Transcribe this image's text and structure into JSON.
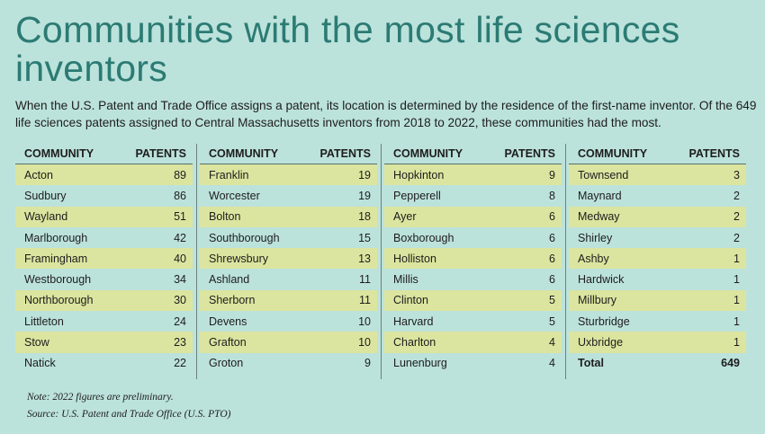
{
  "title": "Communities with the most life sciences inventors",
  "intro": "When the U.S. Patent and Trade Office assigns a patent, its location is determined by the residence of the first-name inventor. Of the 649 life sciences patents assigned to Central Massachusetts inventors from 2018 to 2022, these communities had the most.",
  "colors": {
    "background": "#bce2dc",
    "stripe": "#dce59f",
    "title": "#2b7b73"
  },
  "chart_data": {
    "type": "table",
    "title": "Communities with the most life sciences inventors",
    "columns": [
      "COMMUNITY",
      "PATENTS"
    ],
    "groups": [
      [
        [
          "Acton",
          89
        ],
        [
          "Sudbury",
          86
        ],
        [
          "Wayland",
          51
        ],
        [
          "Marlborough",
          42
        ],
        [
          "Framingham",
          40
        ],
        [
          "Westborough",
          34
        ],
        [
          "Northborough",
          30
        ],
        [
          "Littleton",
          24
        ],
        [
          "Stow",
          23
        ],
        [
          "Natick",
          22
        ]
      ],
      [
        [
          "Franklin",
          19
        ],
        [
          "Worcester",
          19
        ],
        [
          "Bolton",
          18
        ],
        [
          "Southborough",
          15
        ],
        [
          "Shrewsbury",
          13
        ],
        [
          "Ashland",
          11
        ],
        [
          "Sherborn",
          11
        ],
        [
          "Devens",
          10
        ],
        [
          "Grafton",
          10
        ],
        [
          "Groton",
          9
        ]
      ],
      [
        [
          "Hopkinton",
          9
        ],
        [
          "Pepperell",
          8
        ],
        [
          "Ayer",
          6
        ],
        [
          "Boxborough",
          6
        ],
        [
          "Holliston",
          6
        ],
        [
          "Millis",
          6
        ],
        [
          "Clinton",
          5
        ],
        [
          "Harvard",
          5
        ],
        [
          "Charlton",
          4
        ],
        [
          "Lunenburg",
          4
        ]
      ],
      [
        [
          "Townsend",
          3
        ],
        [
          "Maynard",
          2
        ],
        [
          "Medway",
          2
        ],
        [
          "Shirley",
          2
        ],
        [
          "Ashby",
          1
        ],
        [
          "Hardwick",
          1
        ],
        [
          "Millbury",
          1
        ],
        [
          "Sturbridge",
          1
        ],
        [
          "Uxbridge",
          1
        ],
        [
          "Total",
          649
        ]
      ]
    ]
  },
  "notes": {
    "note": "Note: 2022 figures are preliminary.",
    "source": "Source: U.S. Patent and Trade Office (U.S. PTO)"
  }
}
